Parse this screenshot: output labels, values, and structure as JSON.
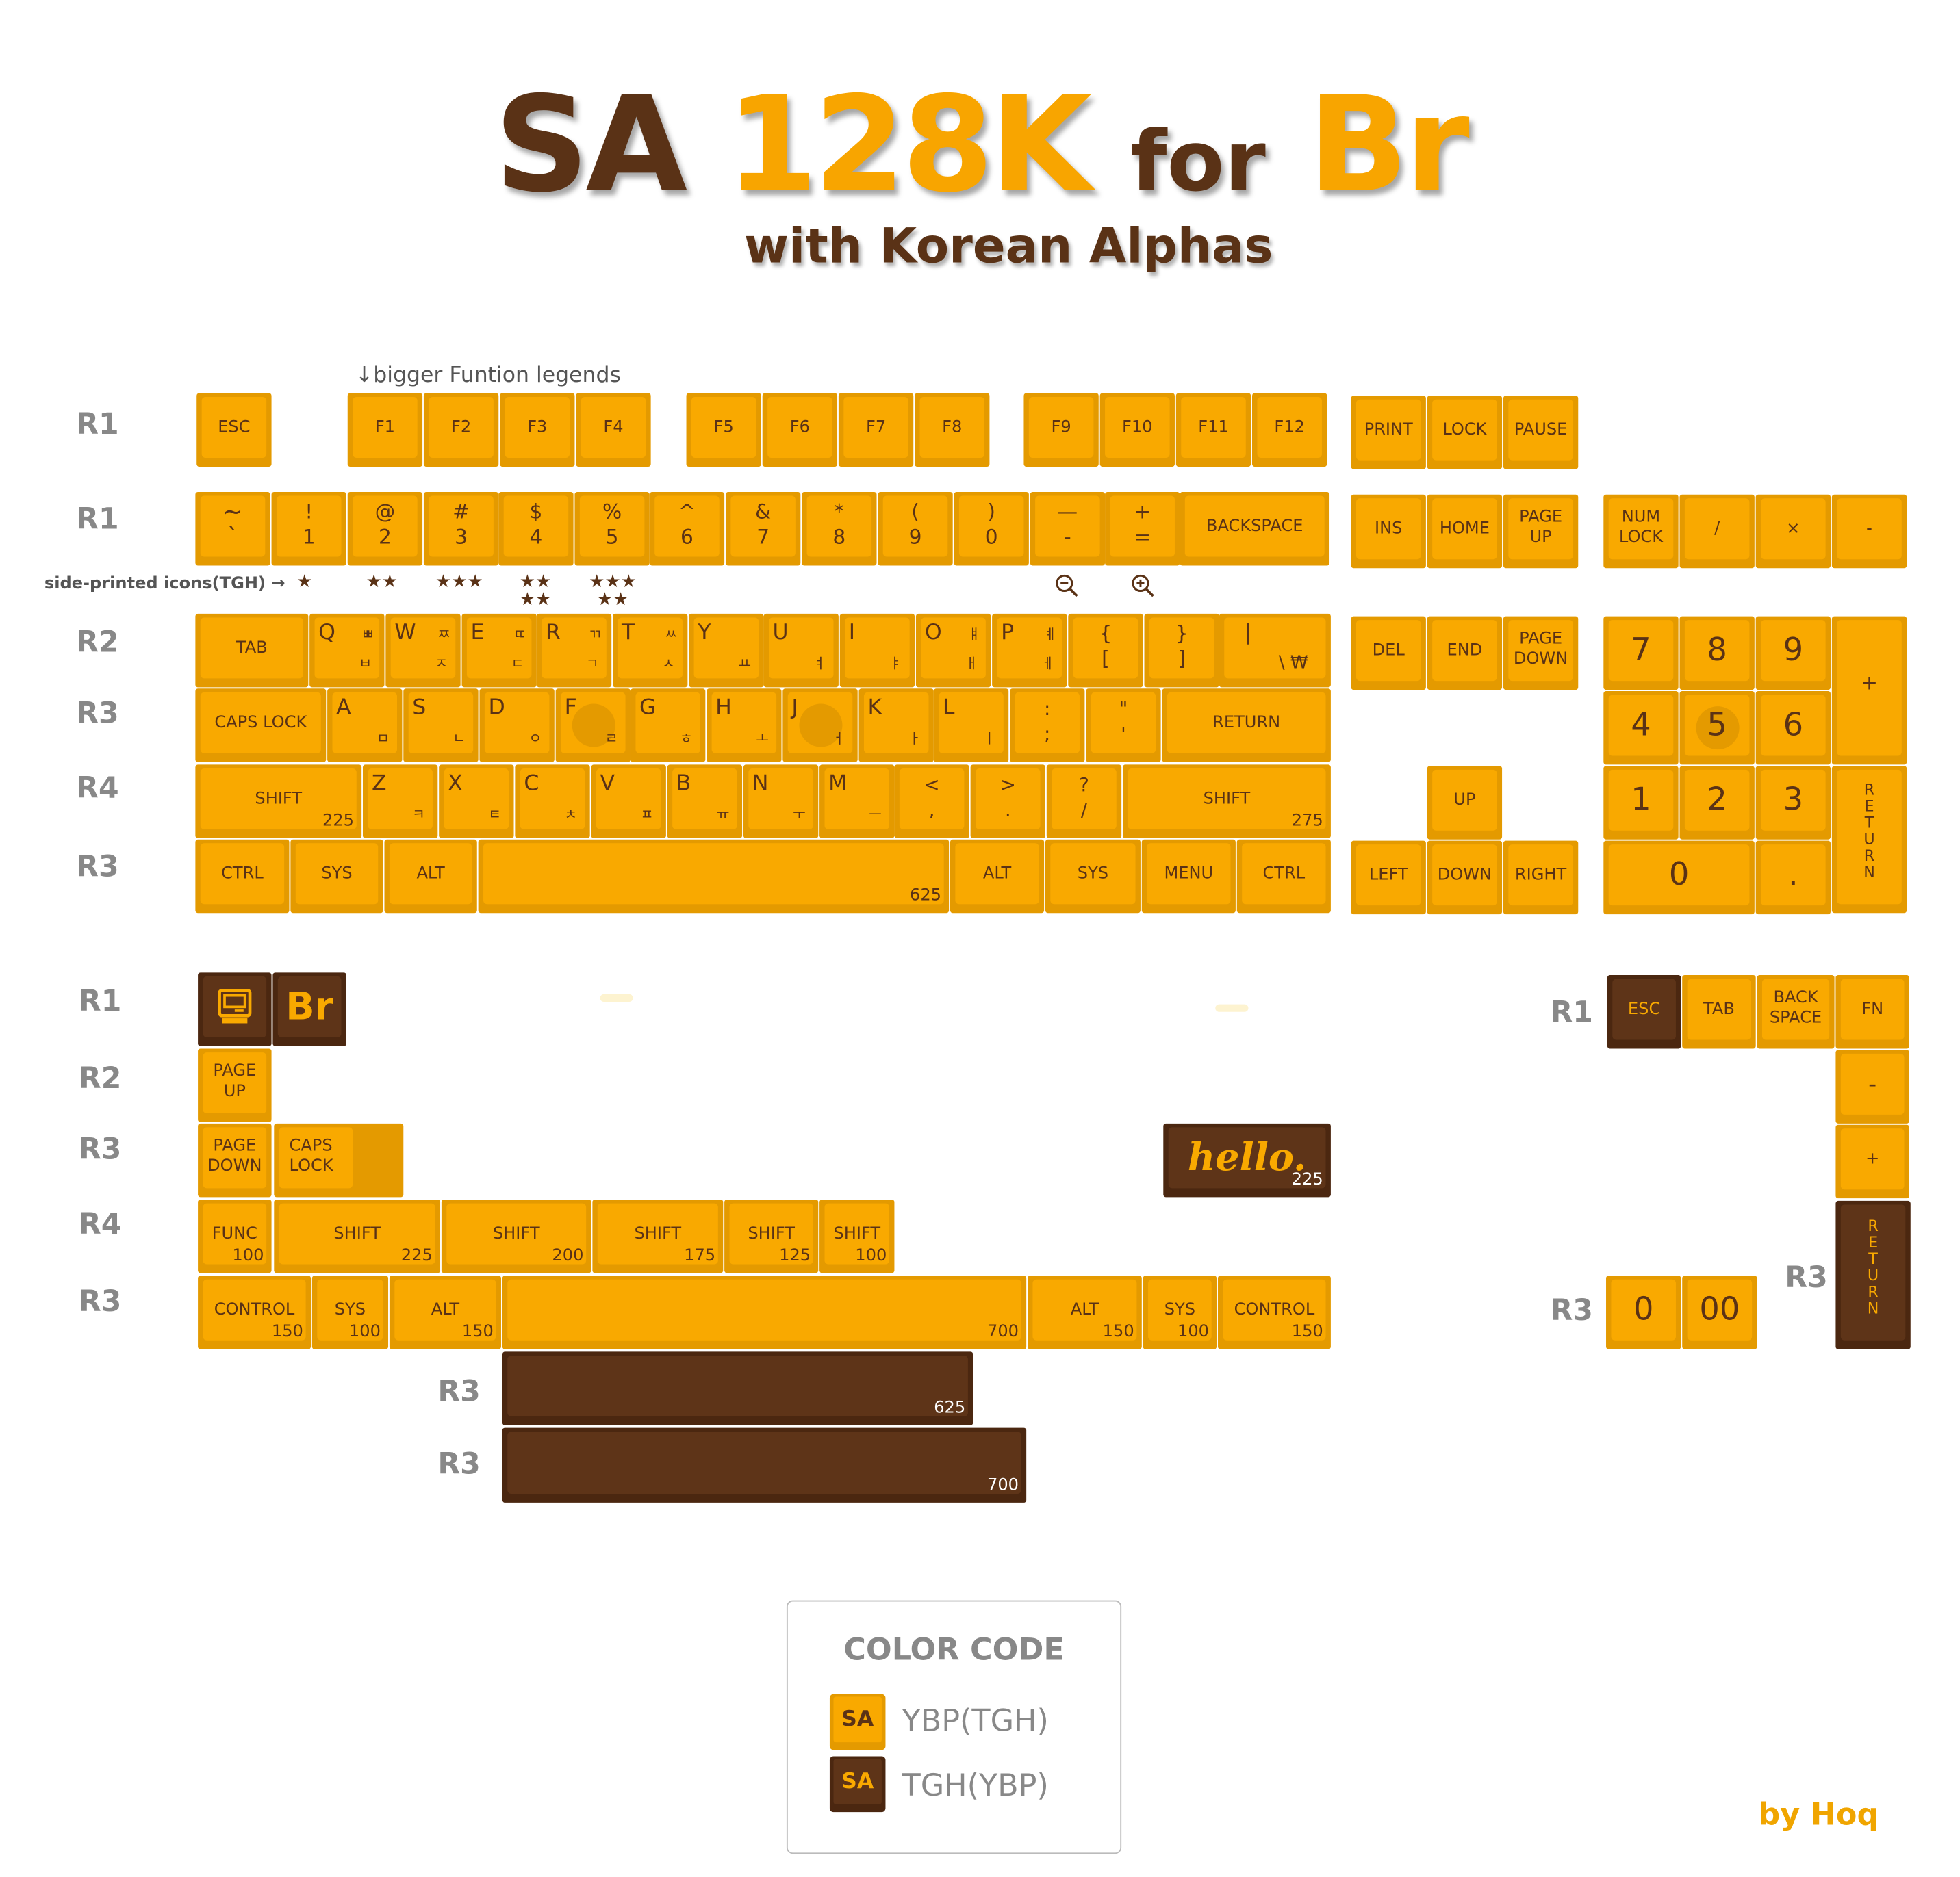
{
  "title": {
    "sa": "SA",
    "num": "128K",
    "for": "for",
    "br": "Br",
    "subtitle": "with Korean Alphas"
  },
  "notes": {
    "bigger_function": "↓bigger Funtion legends",
    "side_printed": "side-printed icons(TGH) →"
  },
  "colors": {
    "ybp_light": "#f9a900",
    "ybp_side": "#e49a00",
    "tgh": "#5e3418",
    "legend_text": "#5a3216",
    "row_label": "#888888"
  },
  "row_labels": [
    "R1",
    "R1",
    "R2",
    "R3",
    "R4",
    "R3",
    "R1",
    "R2",
    "R3",
    "R4",
    "R3",
    "R3",
    "R3",
    "R1",
    "R3",
    "R3"
  ],
  "keys": {
    "esc": "ESC",
    "f1": "F1",
    "f2": "F2",
    "f3": "F3",
    "f4": "F4",
    "f5": "F5",
    "f6": "F6",
    "f7": "F7",
    "f8": "F8",
    "f9": "F9",
    "f10": "F10",
    "f11": "F11",
    "f12": "F12",
    "print": "PRINT",
    "lock": "LOCK",
    "pause": "PAUSE",
    "grave": "~\n`",
    "k1": "!\n1",
    "k2": "@\n2",
    "k3": "#\n3",
    "k4": "$\n4",
    "k5": "%\n5",
    "k6": "^\n6",
    "k7": "&\n7",
    "k8": "*\n8",
    "k9": "(\n9",
    "k0": ")\n0",
    "minus": "—\n-",
    "equal": "+\n=",
    "backspace": "BACKSPACE",
    "ins": "INS",
    "home": "HOME",
    "pgup": "PAGE\nUP",
    "numlock": "NUM\nLOCK",
    "nslash": "/",
    "nstar": "×",
    "nminus": "-",
    "tab": "TAB",
    "q": "Q",
    "q_h": "ㅃ",
    "q_h2": "ㅂ",
    "w": "W",
    "w_h": "ㅉ",
    "w_h2": "ㅈ",
    "e": "E",
    "e_h": "ㄸ",
    "e_h2": "ㄷ",
    "r": "R",
    "r_h": "ㄲ",
    "r_h2": "ㄱ",
    "t": "T",
    "t_h": "ㅆ",
    "t_h2": "ㅅ",
    "y": "Y",
    "y_h2": "ㅛ",
    "u": "U",
    "u_h2": "ㅕ",
    "i": "I",
    "i_h2": "ㅑ",
    "o": "O",
    "o_h": "ㅒ",
    "o_h2": "ㅐ",
    "p": "P",
    "p_h": "ㅖ",
    "p_h2": "ㅔ",
    "lbrace": "{\n[",
    "rbrace": "}\n]",
    "pipe": "|",
    "pipe2": "\\   ₩",
    "del": "DEL",
    "end": "END",
    "pgdn": "PAGE\nDOWN",
    "n7": "7",
    "n8": "8",
    "n9": "9",
    "nplus": "+",
    "caps": "CAPS LOCK",
    "a": "A",
    "a_h2": "ㅁ",
    "s": "S",
    "s_h2": "ㄴ",
    "d": "D",
    "d_h2": "ㅇ",
    "f": "F",
    "f_h2": "ㄹ",
    "g": "G",
    "g_h2": "ㅎ",
    "h": "H",
    "h_h2": "ㅗ",
    "j": "J",
    "j_h2": "ㅓ",
    "k": "K",
    "k_h2": "ㅏ",
    "l": "L",
    "l_h2": "ㅣ",
    "semi": ":\n;",
    "quote": "\"\n'",
    "return": "RETURN",
    "n4": "4",
    "n5": "5",
    "n6": "6",
    "lshift": "SHIFT",
    "lshift_sz": "225",
    "z": "Z",
    "z_h2": "ㅋ",
    "x": "X",
    "x_h2": "ㅌ",
    "c": "C",
    "c_h2": "ㅊ",
    "v": "V",
    "v_h2": "ㅍ",
    "b": "B",
    "b_h2": "ㅠ",
    "n": "N",
    "n_h2": "ㅜ",
    "m": "M",
    "m_h2": "ㅡ",
    "comma": "<\n,",
    "period": ">\n.",
    "slash": "?\n/",
    "rshift": "SHIFT",
    "rshift_sz": "275",
    "up": "UP",
    "n1": "1",
    "n2": "2",
    "n3": "3",
    "nreturn": "R\nE\nT\nU\nR\nN",
    "lctrl": "CTRL",
    "lsys": "SYS",
    "lalt": "ALT",
    "space_sz": "625",
    "ralt": "ALT",
    "rsys": "SYS",
    "menu": "MENU",
    "rctrl": "CTRL",
    "left": "LEFT",
    "down": "DOWN",
    "right": "RIGHT",
    "n0": "0",
    "ndot": ".",
    "x_br": "Br",
    "x_pgup": "PAGE\nUP",
    "x_pgdn": "PAGE\nDOWN",
    "x_caps": "CAPS\nLOCK",
    "x_hello": "hello.",
    "x_hello_sz": "225",
    "x_func": "FUNC",
    "x_func_sz": "100",
    "x_shift225": "SHIFT",
    "x_shift225_sz": "225",
    "x_shift200": "SHIFT",
    "x_shift200_sz": "200",
    "x_shift175": "SHIFT",
    "x_shift175_sz": "175",
    "x_shift125": "SHIFT",
    "x_shift125_sz": "125",
    "x_shift100": "SHIFT",
    "x_shift100_sz": "100",
    "x_control": "CONTROL",
    "x_control_sz": "150",
    "x_sys": "SYS",
    "x_sys_sz": "100",
    "x_alt": "ALT",
    "x_alt_sz": "150",
    "x_space700_sz": "700",
    "x_alt2": "ALT",
    "x_alt2_sz": "150",
    "x_sys2": "SYS",
    "x_sys2_sz": "100",
    "x_control2": "CONTROL",
    "x_control2_sz": "150",
    "x_space625d_sz": "625",
    "x_space700d_sz": "700",
    "x_esc": "ESC",
    "x_tab": "TAB",
    "x_backspace": "BACK\nSPACE",
    "x_fn": "FN",
    "x_nminus": "-",
    "x_nplus": "+",
    "x_nreturn": "R\nE\nT\nU\nR\nN",
    "x_n0": "0",
    "x_n00": "00"
  },
  "color_code": {
    "title": "COLOR CODE",
    "swatch": "SA",
    "items": [
      {
        "label": "YBP(TGH)",
        "color": "#f9a900"
      },
      {
        "label": "TGH(YBP)",
        "color": "#5e3418"
      }
    ]
  },
  "credit": "by Hoq"
}
